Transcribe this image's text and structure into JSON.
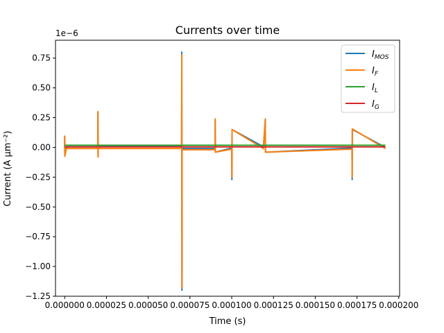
{
  "chart_data": {
    "type": "line",
    "title": "Currents over time",
    "xlabel": "Time (s)",
    "ylabel": "Current (A μm⁻²)",
    "y_offset_label": "1e−6",
    "xlim": [
      -5.5e-06,
      0.0002005
    ],
    "ylim": [
      -1.25e-06,
      9e-07
    ],
    "x_ticks": [
      0,
      2.5e-05,
      5e-05,
      7.5e-05,
      0.0001,
      0.000125,
      0.00015,
      0.000175,
      0.0002
    ],
    "x_tick_labels": [
      "0.000000",
      "0.000025",
      "0.000050",
      "0.000075",
      "0.000100",
      "0.000125",
      "0.000150",
      "0.000175",
      "0.000200"
    ],
    "y_ticks": [
      -1.25e-06,
      -1e-06,
      -7.5e-07,
      -5e-07,
      -2.5e-07,
      0,
      2.5e-07,
      5e-07,
      7.5e-07
    ],
    "y_tick_labels": [
      "−1.25",
      "−1.00",
      "−0.75",
      "−0.50",
      "−0.25",
      "0.00",
      "0.25",
      "0.50",
      "0.75"
    ],
    "grid": false,
    "legend_position": "top-right",
    "series": [
      {
        "name": "I_MOS",
        "legend_main": "I",
        "legend_sub": "MOS",
        "color": "#1f77b4",
        "x": [
          0,
          0,
          1e-07,
          1e-06,
          2e-06,
          1.98e-05,
          1.99e-05,
          2e-05,
          2.01e-05,
          7e-05,
          7.01e-05,
          7.02e-05,
          7.03e-05,
          9e-05,
          9.01e-05,
          9.02e-05,
          0.0001,
          0.0001001,
          0.0001002,
          0.000119,
          0.0001201,
          0.0001202,
          0.000172,
          0.0001721,
          0.0001722,
          0.000192
        ],
        "y": [
          0,
          9e-08,
          -7e-08,
          -5e-09,
          5e-09,
          5e-09,
          3e-07,
          -8e-08,
          8e-09,
          8e-09,
          8e-07,
          -1.2e-06,
          -1e-08,
          -1e-08,
          2.3e-07,
          -4e-08,
          -5e-09,
          -2.7e-07,
          1.5e-07,
          5e-09,
          2.3e-07,
          -4e-08,
          -5e-09,
          -2.7e-07,
          1.5e-07,
          0.0
        ]
      },
      {
        "name": "I_F",
        "legend_main": "I",
        "legend_sub": "F",
        "color": "#ff7f0e",
        "x": [
          0,
          0,
          1e-07,
          1e-06,
          2e-06,
          1.98e-05,
          1.99e-05,
          2e-05,
          2.01e-05,
          7e-05,
          7.01e-05,
          7.02e-05,
          7.03e-05,
          9e-05,
          9.01e-05,
          9.02e-05,
          0.0001,
          0.0001001,
          0.0001002,
          0.000119,
          0.0001201,
          0.0001202,
          0.000172,
          0.0001721,
          0.0001722,
          0.000192
        ],
        "y": [
          0,
          9.5e-08,
          -7.5e-08,
          -1e-08,
          -1e-08,
          -1e-08,
          3e-07,
          -8e-08,
          -1e-08,
          -1e-08,
          7.8e-07,
          -1.18e-06,
          -2e-08,
          -2e-08,
          2.4e-07,
          -4e-08,
          -1.5e-08,
          -2.5e-07,
          1.5e-07,
          -1e-08,
          2.4e-07,
          -4e-08,
          -1.5e-08,
          -2.5e-07,
          1.55e-07,
          -1e-08
        ]
      },
      {
        "name": "I_L",
        "legend_main": "I",
        "legend_sub": "L",
        "color": "#2ca02c",
        "x": [
          0,
          0.000192
        ],
        "y": [
          1.8e-08,
          1.8e-08
        ]
      },
      {
        "name": "I_G",
        "legend_main": "I",
        "legend_sub": "G",
        "color": "#d62728",
        "x": [
          0,
          0.000192
        ],
        "y": [
          4e-09,
          4e-09
        ]
      }
    ]
  }
}
